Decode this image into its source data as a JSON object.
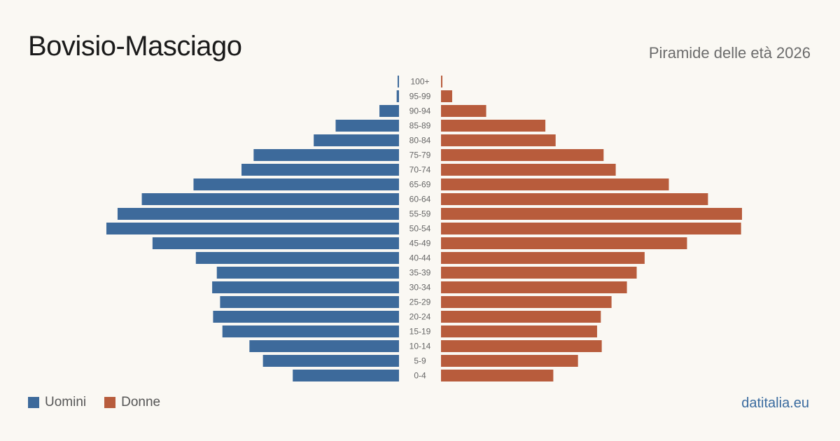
{
  "header": {
    "title": "Bovisio-Masciago",
    "subtitle": "Piramide delle età 2026"
  },
  "legend": {
    "men_label": "Uomini",
    "women_label": "Donne"
  },
  "footer": {
    "source": "datitalia.eu"
  },
  "colors": {
    "men": "#3d6a9b",
    "women": "#b85c3c"
  },
  "chart_data": {
    "type": "bar",
    "orientation": "horizontal-pyramid",
    "title": "Bovisio-Masciago",
    "subtitle": "Piramide delle età 2026",
    "categories": [
      "100+",
      "95-99",
      "90-94",
      "85-89",
      "80-84",
      "75-79",
      "70-74",
      "65-69",
      "60-64",
      "55-59",
      "50-54",
      "45-49",
      "40-44",
      "35-39",
      "30-34",
      "25-29",
      "20-24",
      "15-19",
      "10-14",
      "5-9",
      "0-4"
    ],
    "series": [
      {
        "name": "Uomini",
        "values": [
          3,
          5,
          42,
          136,
          183,
          312,
          338,
          441,
          552,
          604,
          628,
          529,
          436,
          391,
          401,
          384,
          399,
          379,
          321,
          292,
          228
        ]
      },
      {
        "name": "Donne",
        "values": [
          3,
          24,
          97,
          224,
          246,
          349,
          375,
          489,
          573,
          646,
          644,
          528,
          437,
          420,
          399,
          366,
          343,
          335,
          345,
          294,
          241
        ]
      }
    ],
    "xlim": [
      0,
      646
    ],
    "legend_position": "bottom-left",
    "grid": false
  }
}
